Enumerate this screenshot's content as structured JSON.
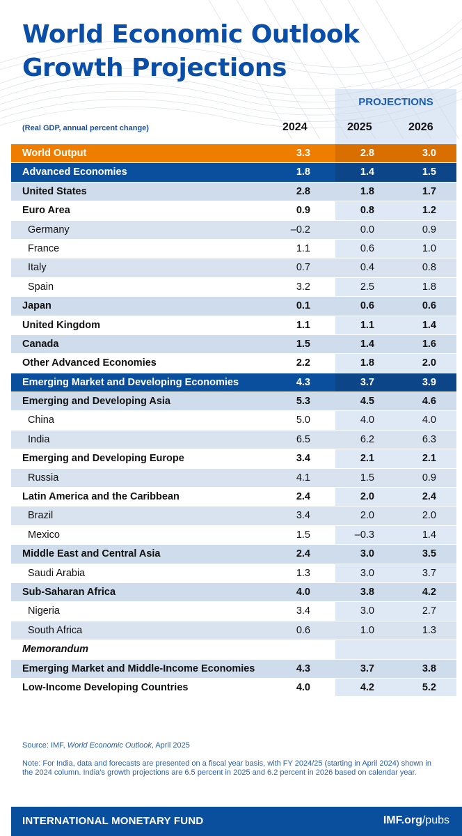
{
  "title": {
    "line1": "World Economic Outlook",
    "line2": "Growth Projections"
  },
  "projections_label": "PROJECTIONS",
  "subtitle": "(Real GDP, annual percent change)",
  "years": [
    "2024",
    "2025",
    "2026"
  ],
  "rows": [
    {
      "label": "World Output",
      "v": [
        "3.3",
        "2.8",
        "3.0"
      ]
    },
    {
      "label": "Advanced Economies",
      "v": [
        "1.8",
        "1.4",
        "1.5"
      ]
    },
    {
      "label": "United States",
      "v": [
        "2.8",
        "1.8",
        "1.7"
      ]
    },
    {
      "label": "Euro Area",
      "v": [
        "0.9",
        "0.8",
        "1.2"
      ]
    },
    {
      "label": "Germany",
      "v": [
        "–0.2",
        "0.0",
        "0.9"
      ]
    },
    {
      "label": "France",
      "v": [
        "1.1",
        "0.6",
        "1.0"
      ]
    },
    {
      "label": "Italy",
      "v": [
        "0.7",
        "0.4",
        "0.8"
      ]
    },
    {
      "label": "Spain",
      "v": [
        "3.2",
        "2.5",
        "1.8"
      ]
    },
    {
      "label": "Japan",
      "v": [
        "0.1",
        "0.6",
        "0.6"
      ]
    },
    {
      "label": "United Kingdom",
      "v": [
        "1.1",
        "1.1",
        "1.4"
      ]
    },
    {
      "label": "Canada",
      "v": [
        "1.5",
        "1.4",
        "1.6"
      ]
    },
    {
      "label": "Other Advanced Economies",
      "v": [
        "2.2",
        "1.8",
        "2.0"
      ]
    },
    {
      "label": "Emerging Market and Developing Economies",
      "v": [
        "4.3",
        "3.7",
        "3.9"
      ]
    },
    {
      "label": "Emerging and Developing Asia",
      "v": [
        "5.3",
        "4.5",
        "4.6"
      ]
    },
    {
      "label": "China",
      "v": [
        "5.0",
        "4.0",
        "4.0"
      ]
    },
    {
      "label": "India",
      "v": [
        "6.5",
        "6.2",
        "6.3"
      ]
    },
    {
      "label": "Emerging and Developing Europe",
      "v": [
        "3.4",
        "2.1",
        "2.1"
      ]
    },
    {
      "label": "Russia",
      "v": [
        "4.1",
        "1.5",
        "0.9"
      ]
    },
    {
      "label": "Latin America and the Caribbean",
      "v": [
        "2.4",
        "2.0",
        "2.4"
      ]
    },
    {
      "label": "Brazil",
      "v": [
        "3.4",
        "2.0",
        "2.0"
      ]
    },
    {
      "label": "Mexico",
      "v": [
        "1.5",
        "–0.3",
        "1.4"
      ]
    },
    {
      "label": "Middle East and Central Asia",
      "v": [
        "2.4",
        "3.0",
        "3.5"
      ]
    },
    {
      "label": "Saudi Arabia",
      "v": [
        "1.3",
        "3.0",
        "3.7"
      ]
    },
    {
      "label": "Sub-Saharan Africa",
      "v": [
        "4.0",
        "3.8",
        "4.2"
      ]
    },
    {
      "label": "Nigeria",
      "v": [
        "3.4",
        "3.0",
        "2.7"
      ]
    },
    {
      "label": "South Africa",
      "v": [
        "0.6",
        "1.0",
        "1.3"
      ]
    },
    {
      "label": "Memorandum",
      "v": [
        "",
        "",
        ""
      ]
    },
    {
      "label": "Emerging Market and Middle-Income Economies",
      "v": [
        "4.3",
        "3.7",
        "3.8"
      ]
    },
    {
      "label": "Low-Income Developing Countries",
      "v": [
        "4.0",
        "4.2",
        "5.2"
      ]
    }
  ],
  "source": {
    "prefix": "Source: IMF, ",
    "title": "World Economic Outlook",
    "suffix": ", April 2025"
  },
  "note": "Note: For India, data and forecasts are presented on a fiscal year basis, with FY 2024/25 (starting in April 2024) shown in the 2024 column. India’s growth projections are 6.5 percent in 2025 and 6.2 percent in 2026 based on calendar year.",
  "footer": {
    "org": "INTERNATIONAL MONETARY FUND",
    "url_bold": "IMF.org",
    "url_rest": "/pubs"
  },
  "colors": {
    "brand_blue": "#0a4e9e",
    "orange": "#ef7d00",
    "band": "#cfdcec"
  }
}
